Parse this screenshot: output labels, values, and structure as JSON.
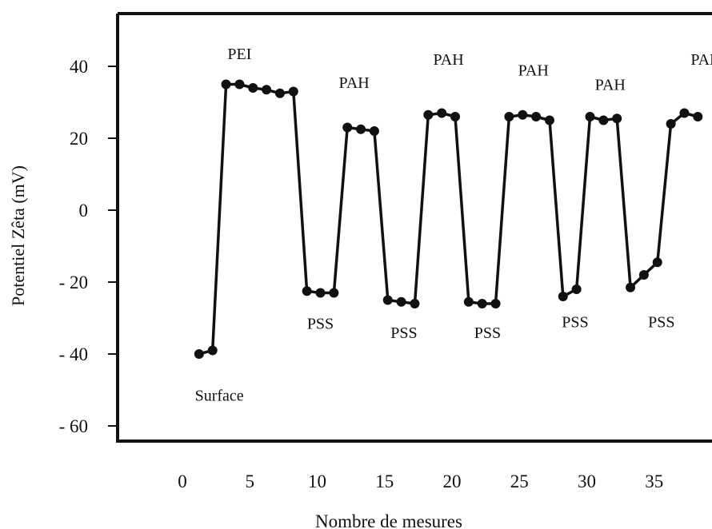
{
  "chart_data": {
    "type": "line",
    "xlabel": "Nombre de mesures",
    "ylabel": "Potentiel Zêta (mV)",
    "xlim": [
      0,
      40
    ],
    "ylim": [
      -65,
      50
    ],
    "x_ticks": [
      0,
      5,
      10,
      15,
      20,
      25,
      30,
      35
    ],
    "x_tick_labels": [
      "0",
      "5",
      "10",
      "15",
      "20",
      "25",
      "30",
      "35"
    ],
    "y_ticks": [
      40,
      20,
      0,
      -20,
      -40,
      -60
    ],
    "y_tick_labels": [
      "40",
      "20",
      "0",
      "- 20",
      "- 40",
      "- 60"
    ],
    "grid": false,
    "series": [
      {
        "x": [
          1,
          2,
          3,
          4,
          5,
          6,
          7,
          8,
          9,
          10,
          11,
          12,
          13,
          14,
          15,
          16,
          17,
          18,
          19,
          20,
          21,
          22,
          23,
          24,
          25,
          26,
          27,
          28,
          29,
          30,
          31,
          32,
          33,
          34,
          35,
          36,
          37,
          38
        ],
        "y": [
          -40,
          -39,
          35,
          35,
          34,
          33.5,
          32.5,
          33,
          -22.5,
          -23,
          -23,
          23,
          22.5,
          22,
          -25,
          -25.5,
          -26,
          26.5,
          27,
          26,
          -25.5,
          -26,
          -26,
          26,
          26.5,
          26,
          25,
          -24,
          -22,
          26,
          25,
          25.5,
          -21.5,
          -18,
          -14.5,
          24,
          27,
          26
        ],
        "color": "#111111"
      }
    ],
    "annotations": [
      {
        "text": "Surface",
        "x": 2.5,
        "y": -53
      },
      {
        "text": "PEI",
        "x": 4,
        "y": 42
      },
      {
        "text": "PAH",
        "x": 12.5,
        "y": 34
      },
      {
        "text": "PSS",
        "x": 10,
        "y": -33
      },
      {
        "text": "PSS",
        "x": 16.2,
        "y": -35.5
      },
      {
        "text": "PAH",
        "x": 19.5,
        "y": 40.5
      },
      {
        "text": "PSS",
        "x": 22.4,
        "y": -35.5
      },
      {
        "text": "PAH",
        "x": 25.8,
        "y": 37.5
      },
      {
        "text": "PSS",
        "x": 28.9,
        "y": -32.5
      },
      {
        "text": "PAH",
        "x": 31.5,
        "y": 33.5
      },
      {
        "text": "PSS",
        "x": 35.3,
        "y": -32.5
      },
      {
        "text": "PAH",
        "x": 38.6,
        "y": 40.5
      }
    ]
  }
}
